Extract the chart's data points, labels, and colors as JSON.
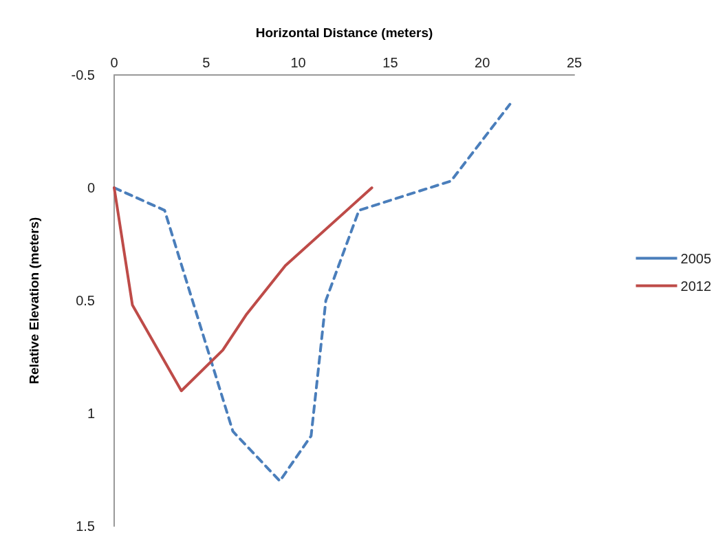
{
  "chart_data": {
    "type": "line",
    "xlabel": "Horizontal Distance (meters)",
    "ylabel": "Relative Elevation (meters)",
    "xlim": [
      0,
      25
    ],
    "xticks": [
      0,
      5,
      10,
      15,
      20,
      25
    ],
    "ylim": [
      1.5,
      -0.5
    ],
    "yticks": [
      -0.5,
      0,
      0.5,
      1,
      1.5
    ],
    "grid": false,
    "legend": "right",
    "marker": "none",
    "series": [
      {
        "name": "2005",
        "color": "#4a7ebb",
        "line_style": "dashed",
        "x": [
          0,
          2.74,
          6.45,
          9.0,
          10.7,
          11.5,
          13.3,
          18.3,
          21.5
        ],
        "values": [
          0,
          0.1,
          1.08,
          1.3,
          1.1,
          0.5,
          0.1,
          -0.03,
          -0.37
        ]
      },
      {
        "name": "2012",
        "color": "#be4b48",
        "line_style": "solid",
        "x": [
          0,
          0.99,
          3.65,
          5.9,
          7.2,
          9.3,
          14.0
        ],
        "values": [
          0,
          0.52,
          0.9,
          0.72,
          0.56,
          0.345,
          0
        ]
      }
    ]
  }
}
